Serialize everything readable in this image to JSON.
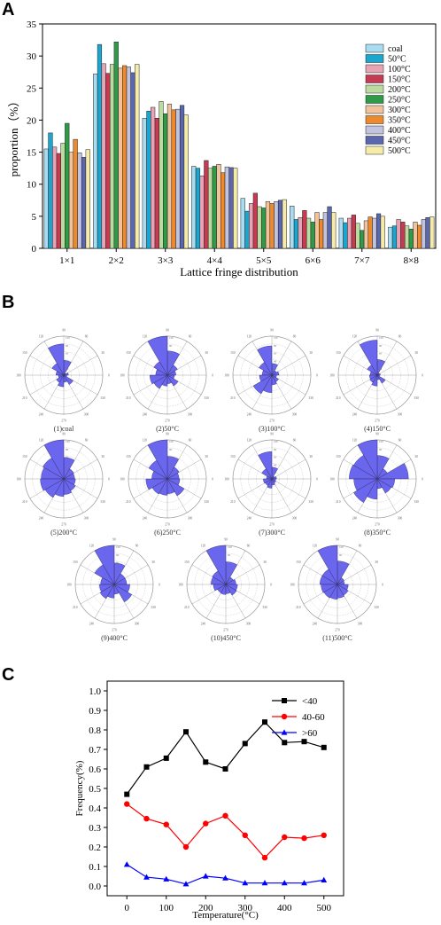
{
  "panel_labels": {
    "a": "A",
    "b": "B",
    "c": "C"
  },
  "colors": {
    "bar_series": [
      "#a9dcf1",
      "#1aa6cf",
      "#e8a4b4",
      "#c73b52",
      "#bcdba0",
      "#2f9a48",
      "#f1c39c",
      "#ee8a2c",
      "#c2c3de",
      "#5a66ad",
      "#f5ecaa"
    ],
    "rose_fill": "#6b66ee",
    "line_series": [
      "#000000",
      "#ff0000",
      "#0000ff"
    ]
  },
  "chart_data": [
    {
      "type": "bar",
      "title": "",
      "xlabel": "Lattice fringe distribution",
      "ylabel": "proportion（%）",
      "ylim": [
        0,
        35
      ],
      "yticks": [
        "0",
        "5",
        "10",
        "15",
        "20",
        "25",
        "30",
        "35"
      ],
      "legend_placement": "right",
      "categories": [
        "1×1",
        "2×2",
        "3×3",
        "4×4",
        "5×5",
        "6×6",
        "7×7",
        "8×8"
      ],
      "series": [
        {
          "name": "coal",
          "values": [
            15.5,
            27.2,
            20.3,
            12.8,
            7.8,
            6.6,
            4.7,
            3.3
          ]
        },
        {
          "name": "50°C",
          "values": [
            18.0,
            31.8,
            21.4,
            12.5,
            5.8,
            4.5,
            4.0,
            3.5
          ]
        },
        {
          "name": "100°C",
          "values": [
            15.8,
            28.8,
            22.0,
            11.3,
            7.0,
            4.8,
            4.7,
            4.5
          ]
        },
        {
          "name": "150°C",
          "values": [
            14.8,
            27.3,
            20.3,
            13.7,
            8.6,
            5.9,
            5.2,
            4.1
          ]
        },
        {
          "name": "200°C",
          "values": [
            16.4,
            28.7,
            22.9,
            12.5,
            6.5,
            4.7,
            3.9,
            3.5
          ]
        },
        {
          "name": "250°C",
          "values": [
            19.5,
            32.2,
            21.0,
            12.8,
            6.3,
            4.1,
            2.8,
            3.0
          ]
        },
        {
          "name": "300°C",
          "values": [
            15.0,
            28.1,
            22.5,
            13.1,
            7.3,
            5.6,
            4.3,
            4.1
          ]
        },
        {
          "name": "350°C",
          "values": [
            17.0,
            28.5,
            21.6,
            11.8,
            7.0,
            4.5,
            4.9,
            3.6
          ]
        },
        {
          "name": "400°C",
          "values": [
            14.9,
            28.3,
            21.7,
            12.7,
            7.3,
            5.6,
            4.7,
            4.5
          ]
        },
        {
          "name": "450°C",
          "values": [
            14.2,
            27.4,
            22.3,
            12.6,
            7.5,
            6.5,
            5.4,
            4.8
          ]
        },
        {
          "name": "500°C",
          "values": [
            15.4,
            28.7,
            20.8,
            12.5,
            7.6,
            5.6,
            5.0,
            4.9
          ]
        }
      ]
    },
    {
      "type": "rose",
      "title": "",
      "angle_ticks": [
        "0",
        "30",
        "60",
        "90",
        "120",
        "150",
        "180",
        "210",
        "240",
        "270",
        "300",
        "330"
      ],
      "radial_ticks": [
        "20",
        "40",
        "60",
        "80",
        "100"
      ],
      "sectors": 12,
      "plots": [
        {
          "label": "(1)coal",
          "values": [
            12,
            6,
            38,
            80,
            35,
            20,
            14,
            22,
            30,
            18,
            28,
            8
          ]
        },
        {
          "label": "(2)50°C",
          "values": [
            22,
            30,
            62,
            100,
            40,
            30,
            45,
            40,
            28,
            22,
            32,
            18
          ]
        },
        {
          "label": "(3)100°C",
          "values": [
            18,
            14,
            30,
            75,
            38,
            25,
            32,
            55,
            45,
            25,
            20,
            12
          ]
        },
        {
          "label": "(4)150°C",
          "values": [
            8,
            6,
            40,
            90,
            30,
            18,
            20,
            22,
            28,
            12,
            24,
            6
          ]
        },
        {
          "label": "(5)200°C",
          "values": [
            28,
            30,
            55,
            100,
            62,
            58,
            60,
            55,
            45,
            40,
            35,
            30
          ]
        },
        {
          "label": "(6)250°C",
          "values": [
            30,
            35,
            58,
            100,
            55,
            40,
            55,
            45,
            42,
            38,
            50,
            32
          ]
        },
        {
          "label": "(7)300°C",
          "values": [
            12,
            8,
            30,
            70,
            30,
            14,
            22,
            20,
            24,
            16,
            12,
            10
          ]
        },
        {
          "label": "(8)350°C",
          "values": [
            80,
            30,
            60,
            100,
            70,
            72,
            60,
            70,
            52,
            25,
            42,
            45
          ]
        },
        {
          "label": "(9)400°C",
          "values": [
            32,
            32,
            55,
            100,
            58,
            35,
            38,
            42,
            35,
            25,
            52,
            40
          ]
        },
        {
          "label": "(10)450°C",
          "values": [
            26,
            22,
            58,
            100,
            40,
            38,
            32,
            25,
            26,
            24,
            32,
            30
          ]
        },
        {
          "label": "(11)500°C",
          "values": [
            18,
            20,
            60,
            100,
            45,
            45,
            42,
            40,
            38,
            35,
            32,
            28
          ]
        }
      ]
    },
    {
      "type": "line",
      "title": "",
      "xlabel": "Temperature(°C)",
      "ylabel": "Frequency(%)",
      "xlim": [
        -50,
        550
      ],
      "ylim": [
        -0.05,
        1.05
      ],
      "xticks": [
        "0",
        "100",
        "200",
        "300",
        "400",
        "500"
      ],
      "yticks": [
        "0.0",
        "0.1",
        "0.2",
        "0.3",
        "0.4",
        "0.5",
        "0.6",
        "0.7",
        "0.8",
        "0.9",
        "1.0"
      ],
      "legend_placement": "top-right",
      "x": [
        0,
        50,
        100,
        150,
        200,
        250,
        300,
        350,
        400,
        450,
        500
      ],
      "series": [
        {
          "name": "<40",
          "marker": "square",
          "values": [
            0.47,
            0.61,
            0.655,
            0.79,
            0.635,
            0.6,
            0.73,
            0.84,
            0.735,
            0.74,
            0.71
          ]
        },
        {
          "name": "40-60",
          "marker": "circle",
          "values": [
            0.42,
            0.345,
            0.315,
            0.2,
            0.32,
            0.36,
            0.26,
            0.145,
            0.25,
            0.245,
            0.26
          ]
        },
        {
          "name": ">60",
          "marker": "triangle",
          "values": [
            0.11,
            0.045,
            0.035,
            0.01,
            0.05,
            0.04,
            0.015,
            0.015,
            0.015,
            0.015,
            0.03
          ]
        }
      ]
    }
  ]
}
